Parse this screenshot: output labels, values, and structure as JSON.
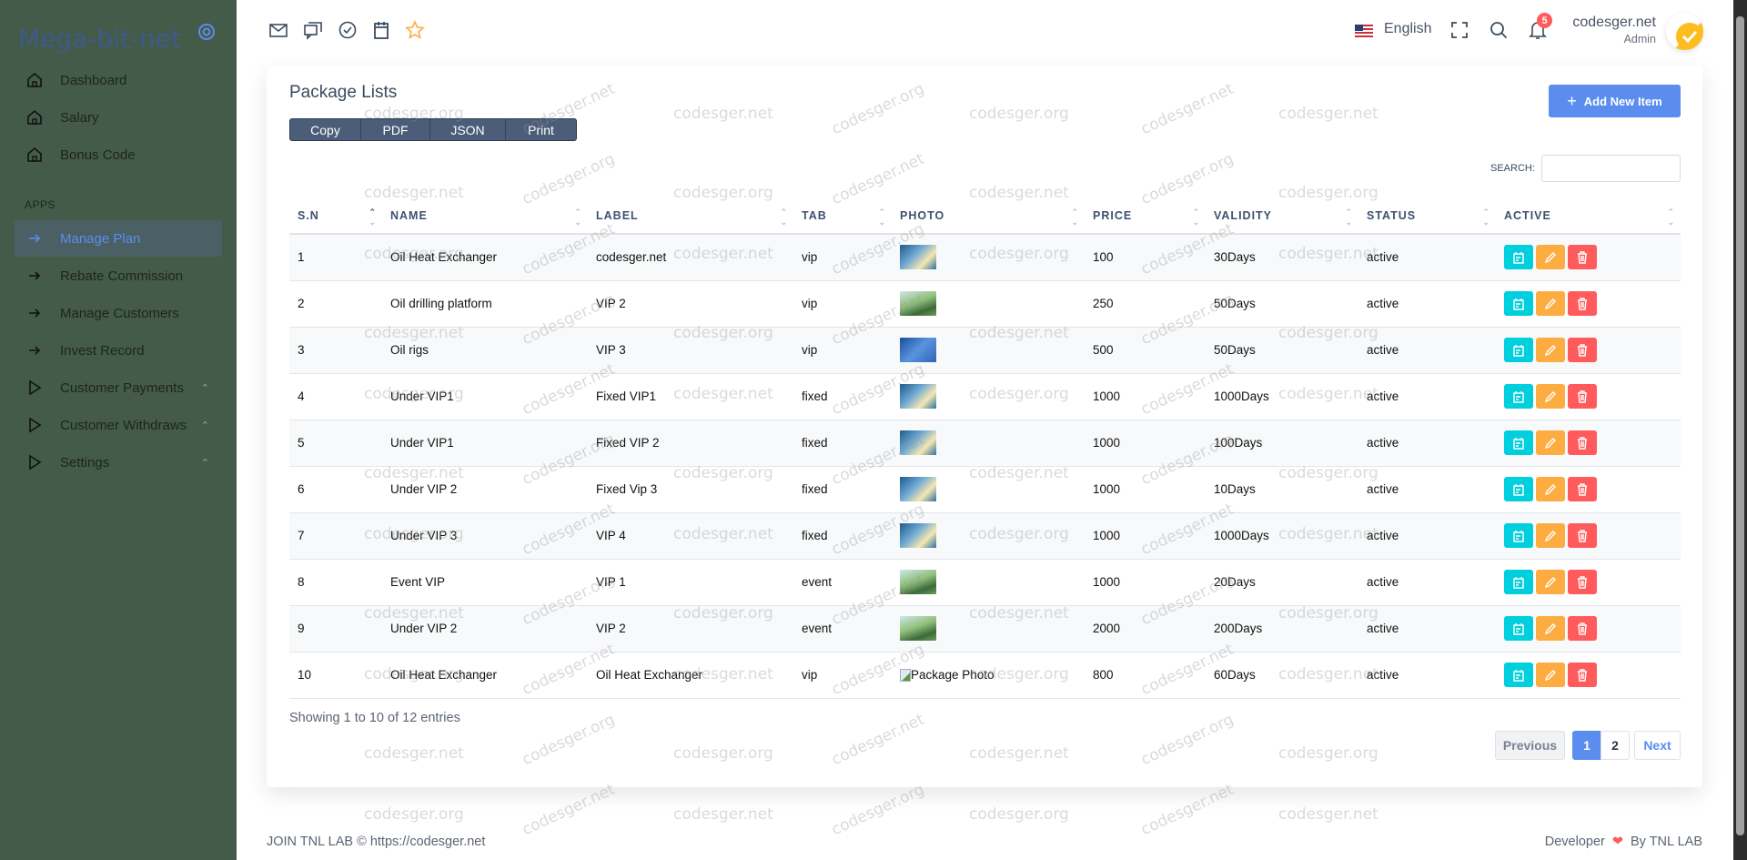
{
  "sidebar": {
    "logo": "Mega-bit-net",
    "section_label": "APPS",
    "items": [
      {
        "label": "Dashboard",
        "icon": "home-icon"
      },
      {
        "label": "Salary",
        "icon": "home-icon"
      },
      {
        "label": "Bonus Code",
        "icon": "home-icon"
      },
      {
        "label": "Manage Plan",
        "icon": "arrow-right-icon",
        "active": true
      },
      {
        "label": "Rebate Commission",
        "icon": "arrow-right-icon"
      },
      {
        "label": "Manage Customers",
        "icon": "arrow-right-icon"
      },
      {
        "label": "Invest Record",
        "icon": "arrow-right-icon"
      },
      {
        "label": "Customer Payments",
        "icon": "play-icon",
        "expandable": true
      },
      {
        "label": "Customer Withdraws",
        "icon": "play-icon",
        "expandable": true
      },
      {
        "label": "Settings",
        "icon": "play-icon",
        "expandable": true
      }
    ]
  },
  "topbar": {
    "icons": [
      "mail-icon",
      "chat-icon",
      "check-circle-icon",
      "calendar-icon",
      "star-icon"
    ],
    "language": "English",
    "notification_count": "5",
    "user_name": "codesger.net",
    "user_role": "Admin"
  },
  "card": {
    "title": "Package Lists",
    "export_buttons": [
      "Copy",
      "PDF",
      "JSON",
      "Print"
    ],
    "add_button": "Add New Item",
    "search_label": "SEARCH:",
    "search_value": ""
  },
  "table": {
    "columns": [
      "S.N",
      "NAME",
      "LABEL",
      "TAB",
      "PHOTO",
      "PRICE",
      "VALIDITY",
      "STATUS",
      "ACTIVE"
    ],
    "rows": [
      {
        "sn": "1",
        "name": "Oil Heat Exchanger",
        "label": "codesger.net",
        "tab": "vip",
        "photo": "solar-wind",
        "price": "100",
        "validity": "30Days",
        "status": "active"
      },
      {
        "sn": "2",
        "name": "Oil drilling platform",
        "label": "VIP 2",
        "tab": "vip",
        "photo": "green-energy",
        "price": "250",
        "validity": "50Days",
        "status": "active"
      },
      {
        "sn": "3",
        "name": "Oil rigs",
        "label": "VIP 3",
        "tab": "vip",
        "photo": "solar-panels",
        "price": "500",
        "validity": "50Days",
        "status": "active"
      },
      {
        "sn": "4",
        "name": "Under VIP1",
        "label": "Fixed VIP1",
        "tab": "fixed",
        "photo": "solar-wind",
        "price": "1000",
        "validity": "1000Days",
        "status": "active"
      },
      {
        "sn": "5",
        "name": "Under VIP1",
        "label": "Fixed VIP 2",
        "tab": "fixed",
        "photo": "solar-wind",
        "price": "1000",
        "validity": "100Days",
        "status": "active"
      },
      {
        "sn": "6",
        "name": "Under VIP 2",
        "label": "Fixed Vip 3",
        "tab": "fixed",
        "photo": "solar-wind",
        "price": "1000",
        "validity": "10Days",
        "status": "active"
      },
      {
        "sn": "7",
        "name": "Under VIP 3",
        "label": "VIP 4",
        "tab": "fixed",
        "photo": "solar-wind",
        "price": "1000",
        "validity": "1000Days",
        "status": "active"
      },
      {
        "sn": "8",
        "name": "Event VIP",
        "label": "VIP 1",
        "tab": "event",
        "photo": "green-energy",
        "price": "1000",
        "validity": "20Days",
        "status": "active"
      },
      {
        "sn": "9",
        "name": "Under VIP 2",
        "label": "VIP 2",
        "tab": "event",
        "photo": "green-energy",
        "price": "2000",
        "validity": "200Days",
        "status": "active"
      },
      {
        "sn": "10",
        "name": "Oil Heat Exchanger",
        "label": "Oil Heat Exchanger",
        "tab": "vip",
        "photo": "broken",
        "photo_alt": "Package Photo",
        "price": "800",
        "validity": "60Days",
        "status": "active"
      }
    ],
    "action_icons": [
      "calendar-icon",
      "pencil-icon",
      "trash-icon"
    ],
    "action_colors": [
      "#00cfdd",
      "#fdac41",
      "#ff5b5c"
    ]
  },
  "pagination": {
    "info": "Showing 1 to 10 of 12 entries",
    "previous": "Previous",
    "pages": [
      "1",
      "2"
    ],
    "current": "1",
    "next": "Next"
  },
  "footer": {
    "left": "JOIN TNL LAB © https://codesger.net",
    "right_prefix": "Developer",
    "right_suffix": "By TNL LAB"
  },
  "watermark": [
    "codesger.org",
    "codesger.net"
  ],
  "colors": {
    "sidebar": "#445b49",
    "accent": "#5b8def",
    "info": "#00cfdd",
    "warning": "#fdac41",
    "danger": "#ff5b5c"
  }
}
